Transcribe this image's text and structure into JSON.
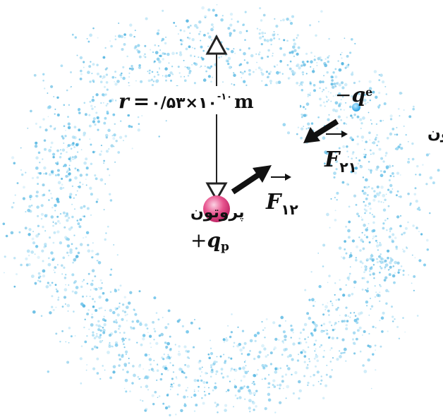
{
  "radius_label": {
    "symbol": "r",
    "equals": "=",
    "value": "٠/۵۳×۱٠",
    "exponent": "-۱٠",
    "unit": "m"
  },
  "electron": {
    "label": "الکترون",
    "charge_sign": "−",
    "charge_symbol": "q",
    "charge_subscript": "e"
  },
  "proton": {
    "label": "پروتون",
    "charge_sign": "+",
    "charge_symbol": "q",
    "charge_subscript": "p"
  },
  "forces": [
    {
      "symbol": "F",
      "subscript": "۲۱"
    },
    {
      "symbol": "F",
      "subscript": "۱۲"
    }
  ]
}
